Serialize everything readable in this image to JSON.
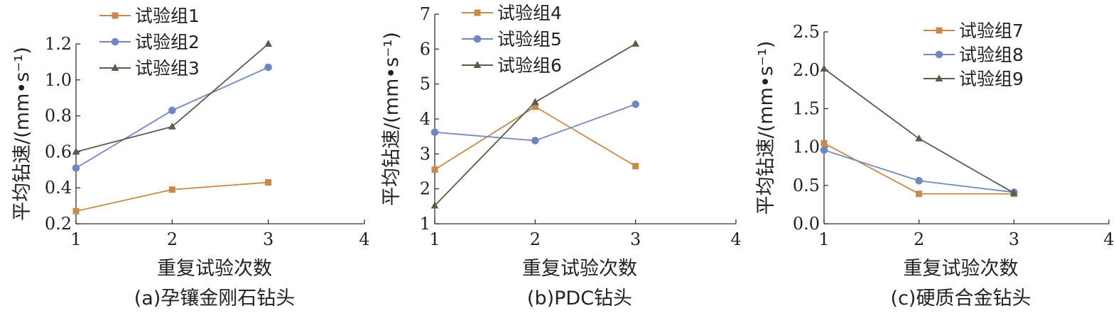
{
  "chart_data": [
    {
      "type": "line",
      "caption": "(a)孕镶金刚石钻头",
      "xlabel": "重复试验次数",
      "ylabel": "平均钻速/(mm•s⁻¹)",
      "xlim": [
        1,
        4
      ],
      "ylim": [
        0.2,
        1.2
      ],
      "xticks": [
        "1",
        "2",
        "3",
        "4"
      ],
      "yticks": [
        "0.2",
        "0.4",
        "0.6",
        "0.8",
        "1.0",
        "1.2"
      ],
      "grid": false,
      "legend_position": "top-left",
      "x": [
        1,
        2,
        3
      ],
      "series": [
        {
          "name": "试验组1",
          "values": [
            0.27,
            0.39,
            0.43
          ],
          "color": "#C8894A",
          "marker": "square"
        },
        {
          "name": "试验组2",
          "values": [
            0.51,
            0.83,
            1.07
          ],
          "color": "#7088C0",
          "marker": "circle"
        },
        {
          "name": "试验组3",
          "values": [
            0.6,
            0.74,
            1.2
          ],
          "color": "#5A5B48",
          "marker": "triangle"
        }
      ]
    },
    {
      "type": "line",
      "caption": "(b)PDC钻头",
      "xlabel": "重复试验次数",
      "ylabel": "平均钻速/(mm•s⁻¹)",
      "xlim": [
        1,
        4
      ],
      "ylim": [
        1,
        7
      ],
      "xticks": [
        "1",
        "2",
        "3",
        "4"
      ],
      "yticks": [
        "1",
        "2",
        "3",
        "4",
        "5",
        "6",
        "7"
      ],
      "grid": false,
      "legend_position": "top-left",
      "x": [
        1,
        2,
        3
      ],
      "series": [
        {
          "name": "试验组4",
          "values": [
            2.55,
            4.35,
            2.65
          ],
          "color": "#C8894A",
          "marker": "square"
        },
        {
          "name": "试验组5",
          "values": [
            3.62,
            3.38,
            4.42
          ],
          "color": "#7088C0",
          "marker": "circle"
        },
        {
          "name": "试验组6",
          "values": [
            1.52,
            4.48,
            6.15
          ],
          "color": "#5A5B48",
          "marker": "triangle"
        }
      ]
    },
    {
      "type": "line",
      "caption": "(c)硬质合金钻头",
      "xlabel": "重复试验次数",
      "ylabel": "平均钻速/(mm•s⁻¹)",
      "xlim": [
        1,
        4
      ],
      "ylim": [
        0.0,
        2.5
      ],
      "xticks": [
        "1",
        "2",
        "3",
        "4"
      ],
      "yticks": [
        "0.0",
        "0.5",
        "1.0",
        "1.5",
        "2.0",
        "2.5"
      ],
      "grid": false,
      "legend_position": "top-center",
      "x": [
        1,
        2,
        3
      ],
      "series": [
        {
          "name": "试验组7",
          "values": [
            1.05,
            0.39,
            0.39
          ],
          "color": "#C8894A",
          "marker": "square"
        },
        {
          "name": "试验组8",
          "values": [
            0.96,
            0.56,
            0.41
          ],
          "color": "#7088C0",
          "marker": "circle"
        },
        {
          "name": "试验组9",
          "values": [
            2.02,
            1.11,
            0.4
          ],
          "color": "#5A5B48",
          "marker": "triangle"
        }
      ]
    }
  ]
}
